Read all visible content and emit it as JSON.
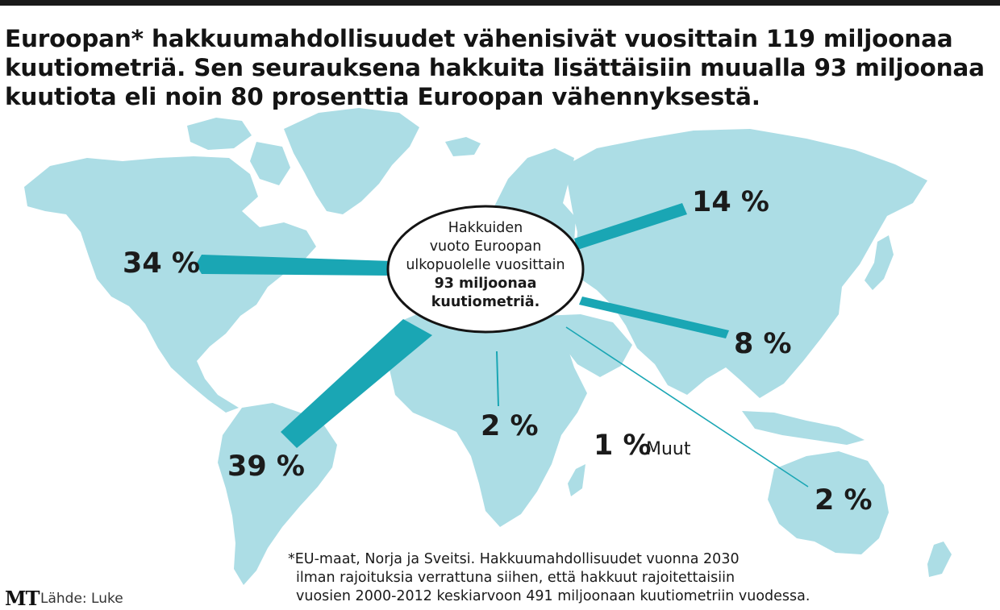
{
  "headline": {
    "line1": "Euroopan* hakkuumahdollisuudet vähenisivät vuosittain 119 miljoonaa",
    "line2": "kuutiometriä. Sen seurauksena hakkuita lisättäisiin muualla 93 miljoonaa",
    "line3": "kuutiota eli noin 80 prosenttia Euroopan vähennyksestä."
  },
  "bubble": {
    "line1": "Hakkuiden",
    "line2": "vuoto Euroopan",
    "line3": "ulkopuolelle vuosittain",
    "line4_bold": "93 miljoonaa",
    "line5_bold": "kuutiometriä."
  },
  "flows": [
    {
      "region": "north-america",
      "label": "34 %",
      "value": 34
    },
    {
      "region": "south-america",
      "label": "39 %",
      "value": 39
    },
    {
      "region": "russia",
      "label": "14 %",
      "value": 14
    },
    {
      "region": "china",
      "label": "8 %",
      "value": 8
    },
    {
      "region": "africa",
      "label": "2 %",
      "value": 2
    },
    {
      "region": "oceania",
      "label": "2 %",
      "value": 2
    },
    {
      "region": "other",
      "label": "1 %",
      "value": 1,
      "note": "Muut"
    }
  ],
  "footnote": {
    "line1": "*EU-maat, Norja ja Sveitsi. Hakkuumahdollisuudet vuonna 2030",
    "line2": "ilman rajoituksia verrattuna siihen, että hakkuut rajoitettaisiin",
    "line3": "vuosien 2000-2012 keskiarvoon 491 miljoonaan kuutiometriin vuodessa."
  },
  "logo": "MT",
  "source": "Lähde: Luke",
  "colors": {
    "land": "#acdde5",
    "flow": "#1aa6b4",
    "text": "#1b1b1b"
  }
}
